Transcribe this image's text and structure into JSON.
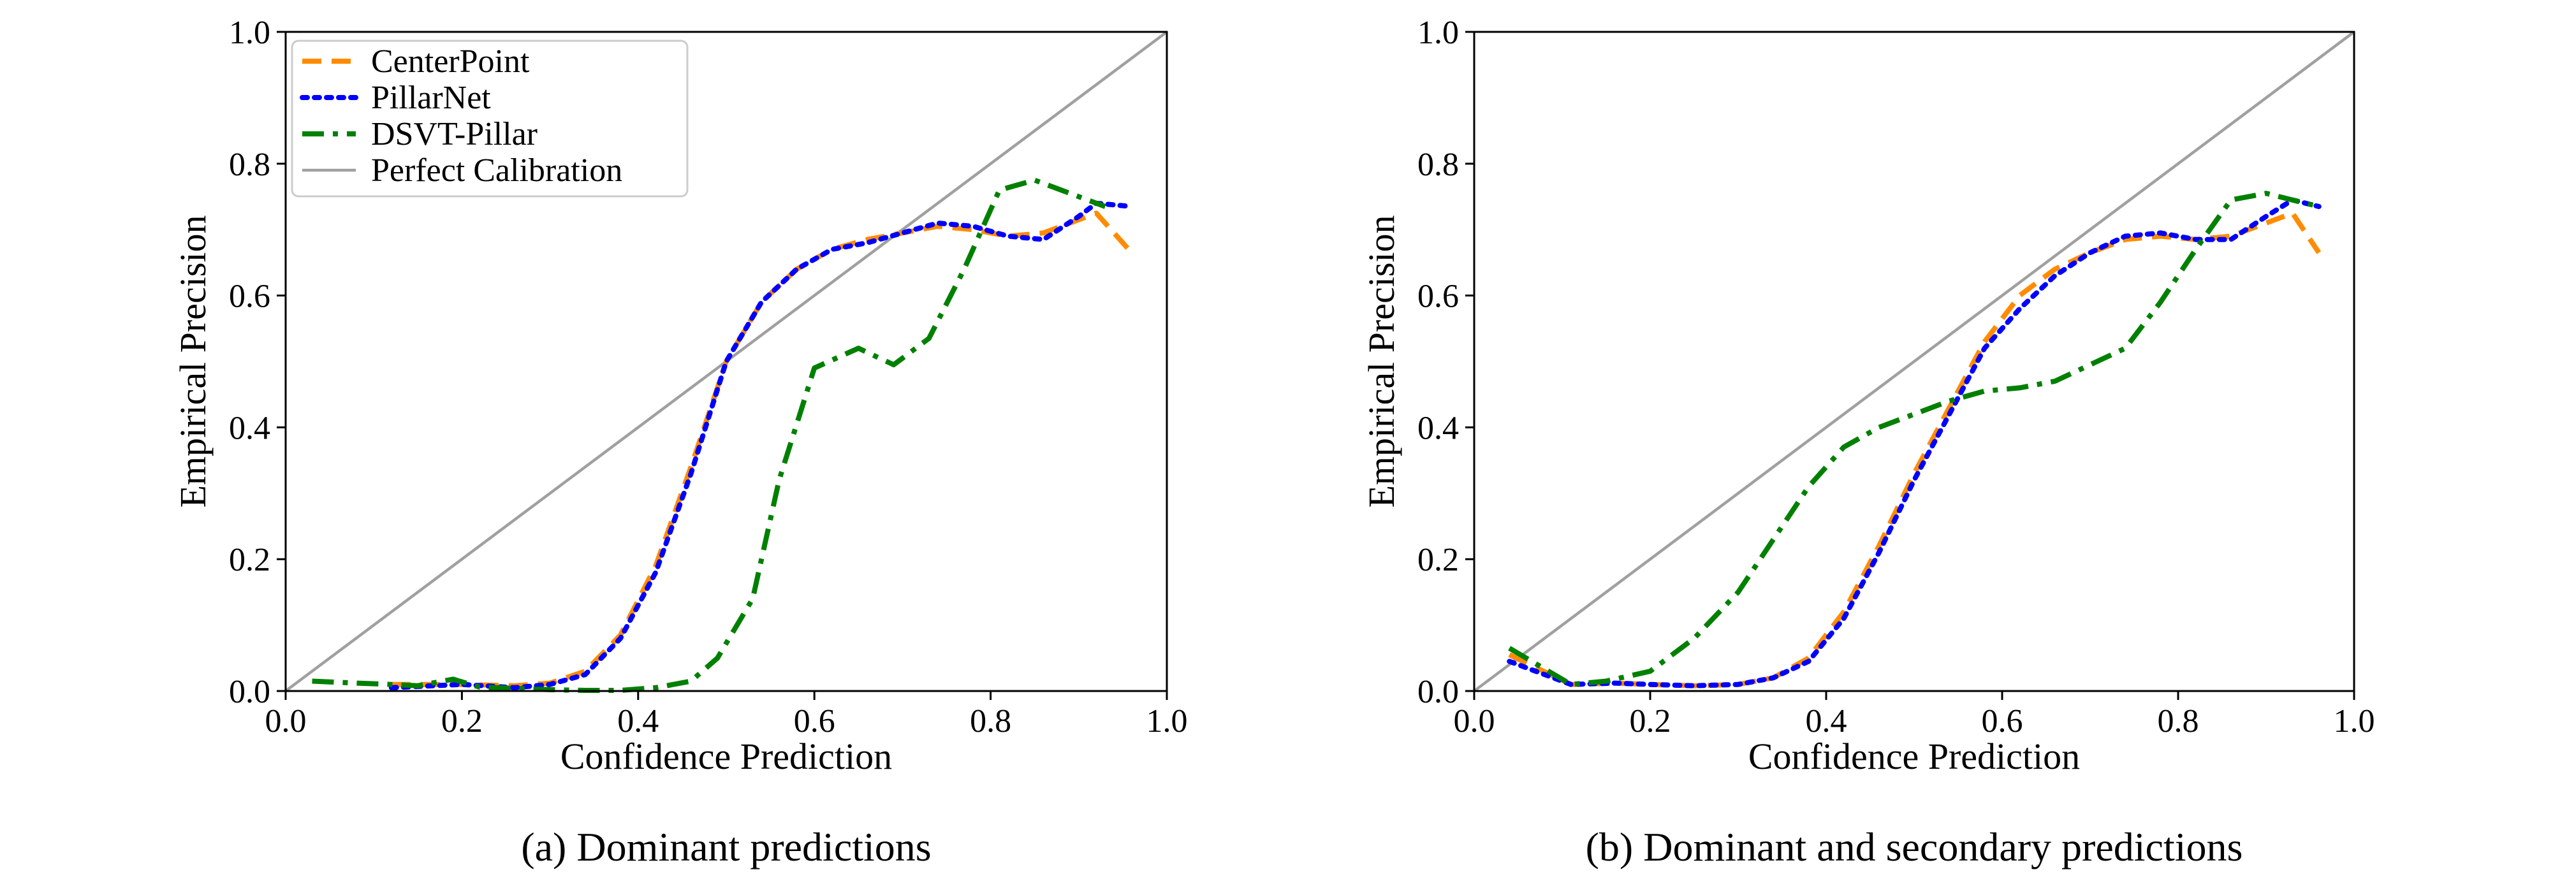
{
  "colors": {
    "CenterPoint": "#ff8c00",
    "PillarNet": "#0000ff",
    "DSVT-Pillar": "#008000",
    "Perfect Calibration": "#a0a0a0",
    "axes": "#000000"
  },
  "chart_data": [
    {
      "type": "line",
      "caption": "(a) Dominant predictions",
      "xlabel": "Confidence Prediction",
      "ylabel": "Empirical Precision",
      "xlim": [
        0.0,
        1.0
      ],
      "ylim": [
        0.0,
        1.0
      ],
      "x_ticks": [
        "0.0",
        "0.2",
        "0.4",
        "0.6",
        "0.8",
        "1.0"
      ],
      "y_ticks": [
        "0.0",
        "0.2",
        "0.4",
        "0.6",
        "0.8",
        "1.0"
      ],
      "grid": false,
      "legend_position": "upper-left",
      "legend": [
        "CenterPoint",
        "PillarNet",
        "DSVT-Pillar",
        "Perfect Calibration"
      ],
      "series": [
        {
          "name": "CenterPoint",
          "style": "dashed",
          "x": [
            0.12,
            0.2,
            0.26,
            0.3,
            0.34,
            0.38,
            0.42,
            0.46,
            0.5,
            0.54,
            0.58,
            0.62,
            0.66,
            0.7,
            0.74,
            0.78,
            0.82,
            0.86,
            0.9,
            0.92,
            0.96
          ],
          "y": [
            0.01,
            0.01,
            0.008,
            0.012,
            0.03,
            0.085,
            0.19,
            0.34,
            0.5,
            0.59,
            0.64,
            0.67,
            0.685,
            0.695,
            0.705,
            0.7,
            0.69,
            0.695,
            0.715,
            0.725,
            0.665
          ]
        },
        {
          "name": "PillarNet",
          "style": "dotted",
          "x": [
            0.12,
            0.2,
            0.26,
            0.3,
            0.34,
            0.38,
            0.42,
            0.46,
            0.5,
            0.54,
            0.58,
            0.62,
            0.66,
            0.7,
            0.74,
            0.78,
            0.82,
            0.86,
            0.9,
            0.92,
            0.96
          ],
          "y": [
            0.005,
            0.01,
            0.005,
            0.01,
            0.025,
            0.08,
            0.18,
            0.33,
            0.5,
            0.59,
            0.64,
            0.67,
            0.68,
            0.695,
            0.71,
            0.705,
            0.69,
            0.685,
            0.72,
            0.74,
            0.735
          ]
        },
        {
          "name": "DSVT-Pillar",
          "style": "dashdot",
          "x": [
            0.03,
            0.08,
            0.12,
            0.15,
            0.19,
            0.22,
            0.26,
            0.3,
            0.34,
            0.38,
            0.42,
            0.46,
            0.49,
            0.53,
            0.56,
            0.6,
            0.65,
            0.69,
            0.73,
            0.77,
            0.81,
            0.85,
            0.89,
            0.93
          ],
          "y": [
            0.015,
            0.012,
            0.01,
            0.008,
            0.018,
            0.006,
            0.004,
            0.002,
            0.001,
            0.001,
            0.005,
            0.015,
            0.05,
            0.14,
            0.32,
            0.49,
            0.52,
            0.495,
            0.535,
            0.64,
            0.76,
            0.775,
            0.755,
            0.735
          ]
        },
        {
          "name": "Perfect Calibration",
          "style": "solid",
          "x": [
            0.0,
            1.0
          ],
          "y": [
            0.0,
            1.0
          ]
        }
      ]
    },
    {
      "type": "line",
      "caption": "(b) Dominant and secondary predictions",
      "xlabel": "Confidence Prediction",
      "ylabel": "Empirical Precision",
      "xlim": [
        0.0,
        1.0
      ],
      "ylim": [
        0.0,
        1.0
      ],
      "x_ticks": [
        "0.0",
        "0.2",
        "0.4",
        "0.6",
        "0.8",
        "1.0"
      ],
      "y_ticks": [
        "0.0",
        "0.2",
        "0.4",
        "0.6",
        "0.8",
        "1.0"
      ],
      "grid": false,
      "legend": [],
      "series": [
        {
          "name": "CenterPoint",
          "style": "dashed",
          "x": [
            0.04,
            0.11,
            0.16,
            0.2,
            0.25,
            0.3,
            0.34,
            0.38,
            0.42,
            0.46,
            0.5,
            0.54,
            0.58,
            0.62,
            0.66,
            0.7,
            0.74,
            0.78,
            0.82,
            0.86,
            0.9,
            0.93,
            0.96
          ],
          "y": [
            0.055,
            0.01,
            0.012,
            0.01,
            0.008,
            0.01,
            0.02,
            0.05,
            0.12,
            0.22,
            0.33,
            0.43,
            0.53,
            0.6,
            0.64,
            0.665,
            0.685,
            0.69,
            0.685,
            0.69,
            0.71,
            0.725,
            0.665
          ]
        },
        {
          "name": "PillarNet",
          "style": "dotted",
          "x": [
            0.04,
            0.11,
            0.16,
            0.2,
            0.25,
            0.3,
            0.34,
            0.38,
            0.42,
            0.46,
            0.5,
            0.54,
            0.58,
            0.62,
            0.66,
            0.7,
            0.74,
            0.78,
            0.82,
            0.86,
            0.9,
            0.93,
            0.96
          ],
          "y": [
            0.045,
            0.01,
            0.012,
            0.01,
            0.008,
            0.01,
            0.02,
            0.045,
            0.11,
            0.21,
            0.32,
            0.42,
            0.52,
            0.58,
            0.63,
            0.665,
            0.69,
            0.695,
            0.685,
            0.685,
            0.72,
            0.745,
            0.735
          ]
        },
        {
          "name": "DSVT-Pillar",
          "style": "dashdot",
          "x": [
            0.04,
            0.11,
            0.15,
            0.2,
            0.25,
            0.3,
            0.34,
            0.38,
            0.42,
            0.46,
            0.5,
            0.54,
            0.58,
            0.62,
            0.66,
            0.7,
            0.74,
            0.78,
            0.82,
            0.86,
            0.9,
            0.93,
            0.96
          ],
          "y": [
            0.065,
            0.01,
            0.015,
            0.03,
            0.08,
            0.15,
            0.23,
            0.31,
            0.37,
            0.4,
            0.42,
            0.44,
            0.455,
            0.46,
            0.47,
            0.495,
            0.52,
            0.59,
            0.67,
            0.745,
            0.755,
            0.745,
            0.735
          ]
        },
        {
          "name": "Perfect Calibration",
          "style": "solid",
          "x": [
            0.0,
            1.0
          ],
          "y": [
            0.0,
            1.0
          ]
        }
      ]
    }
  ]
}
